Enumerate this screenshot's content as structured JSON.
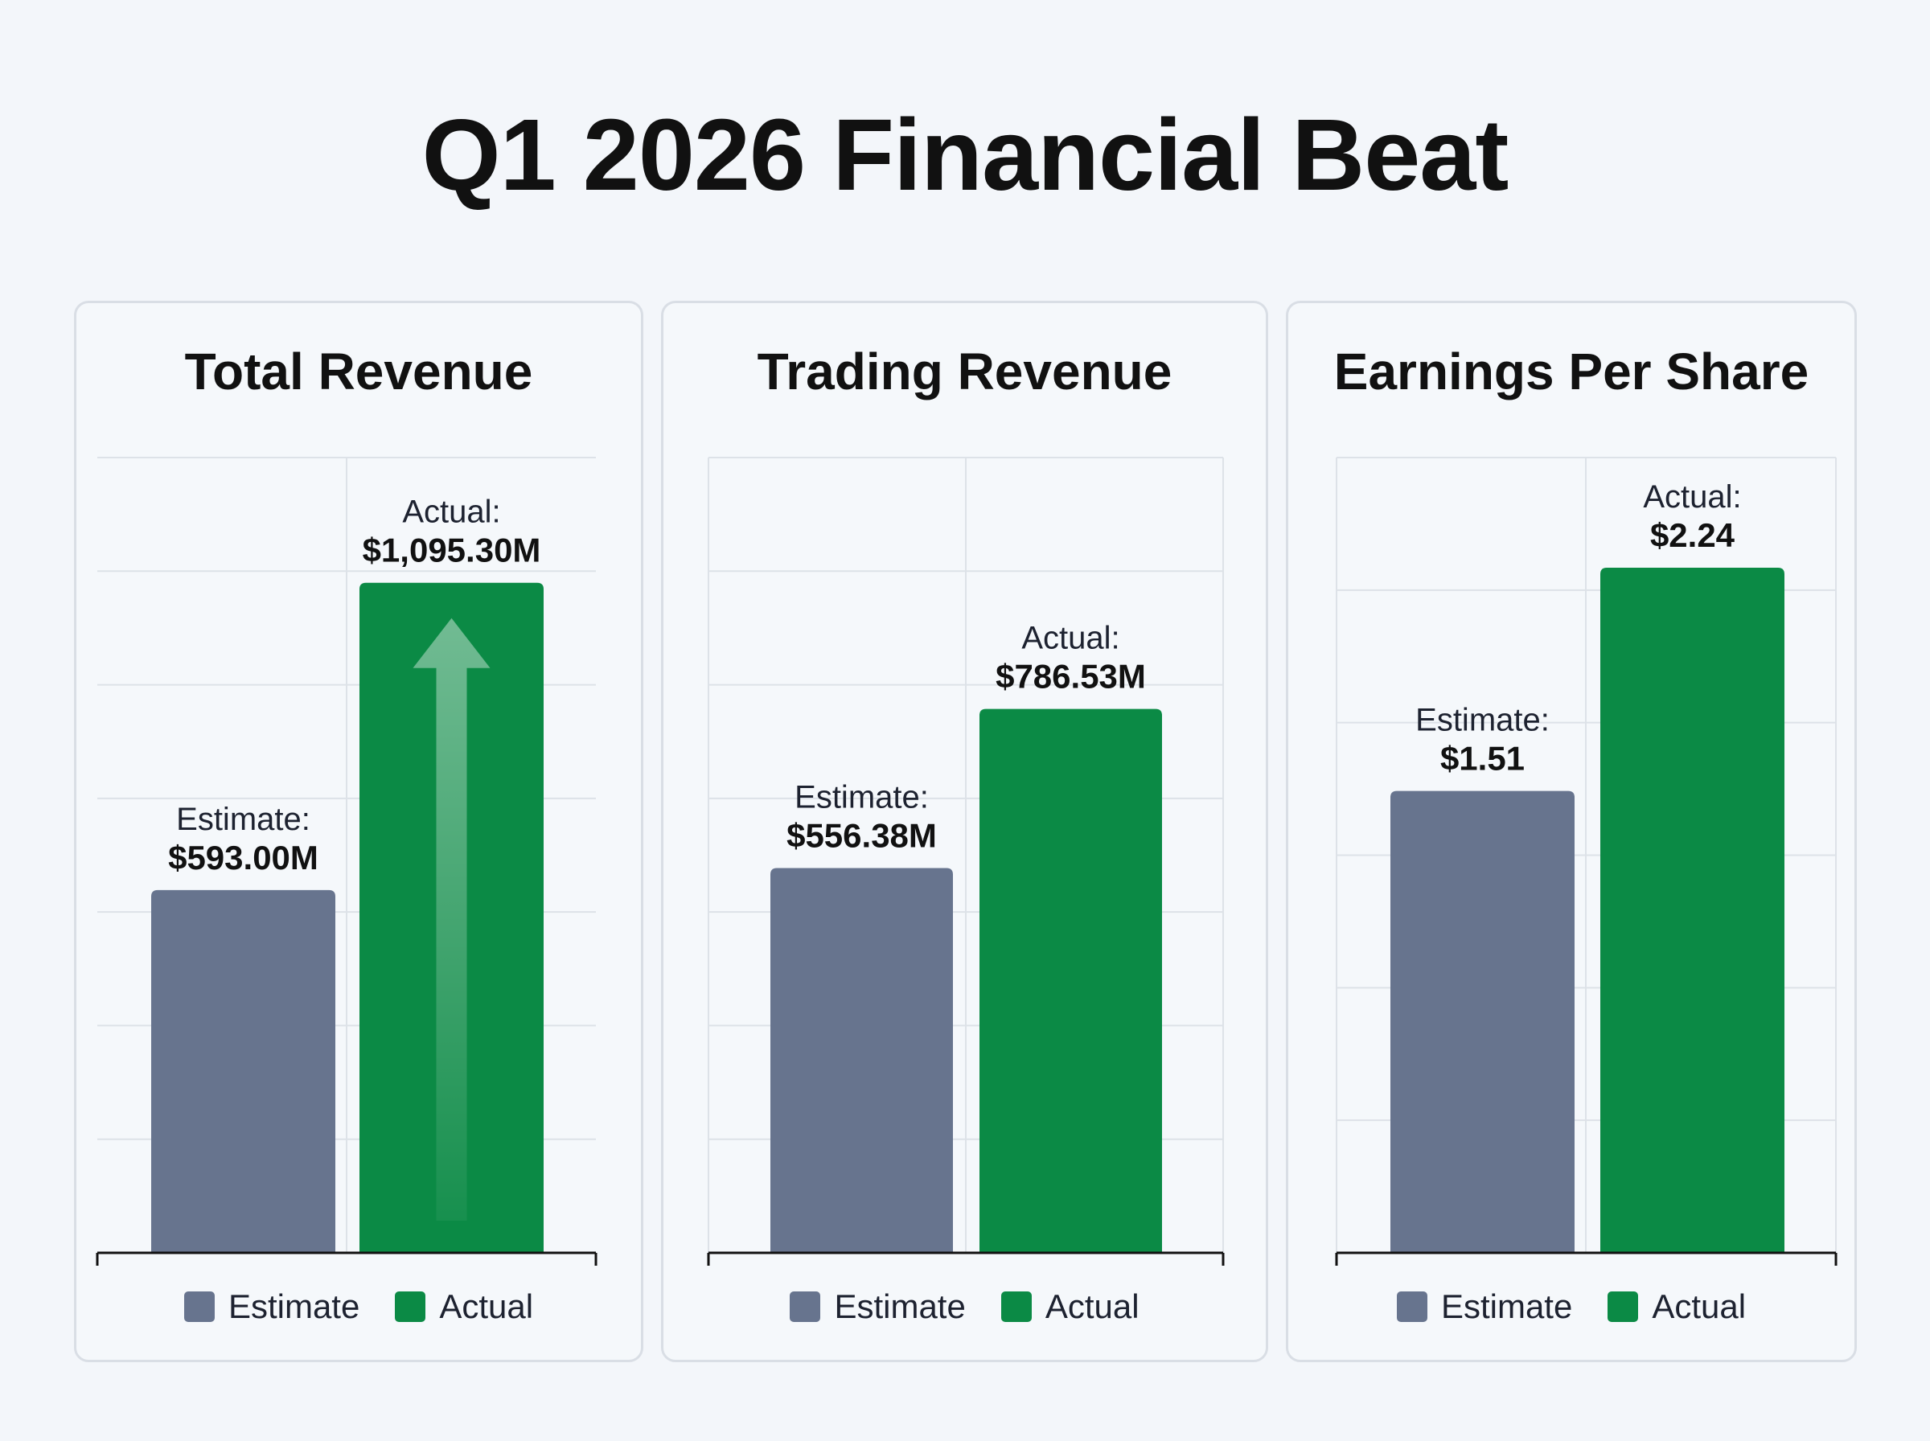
{
  "title": "Q1 2026 Financial Beat",
  "colors": {
    "estimate": "#67748e",
    "actual": "#0b8a45",
    "grid": "#dde2e8",
    "axis": "#111111"
  },
  "legend": {
    "estimate": "Estimate",
    "actual": "Actual"
  },
  "chart_data": [
    {
      "type": "bar",
      "title": "Total Revenue",
      "categories": [
        "Estimate",
        "Actual"
      ],
      "values": [
        593.0,
        1095.3
      ],
      "labels": [
        {
          "prefix": "Estimate:",
          "value": "$593.00M"
        },
        {
          "prefix": "Actual:",
          "value": "$1,095.30M"
        }
      ],
      "ylim": [
        0,
        1300
      ],
      "grid": true,
      "highlight_arrow": true
    },
    {
      "type": "bar",
      "title": "Trading Revenue",
      "categories": [
        "Estimate",
        "Actual"
      ],
      "values": [
        556.38,
        786.53
      ],
      "labels": [
        {
          "prefix": "Estimate:",
          "value": "$556.38M"
        },
        {
          "prefix": "Actual:",
          "value": "$786.53M"
        }
      ],
      "ylim": [
        0,
        1150
      ],
      "grid": true,
      "highlight_arrow": false
    },
    {
      "type": "bar",
      "title": "Earnings Per Share",
      "categories": [
        "Estimate",
        "Actual"
      ],
      "values": [
        1.51,
        2.24
      ],
      "labels": [
        {
          "prefix": "Estimate:",
          "value": "$1.51"
        },
        {
          "prefix": "Actual:",
          "value": "$2.24"
        }
      ],
      "ylim": [
        0,
        2.6
      ],
      "grid": true,
      "highlight_arrow": false
    }
  ]
}
